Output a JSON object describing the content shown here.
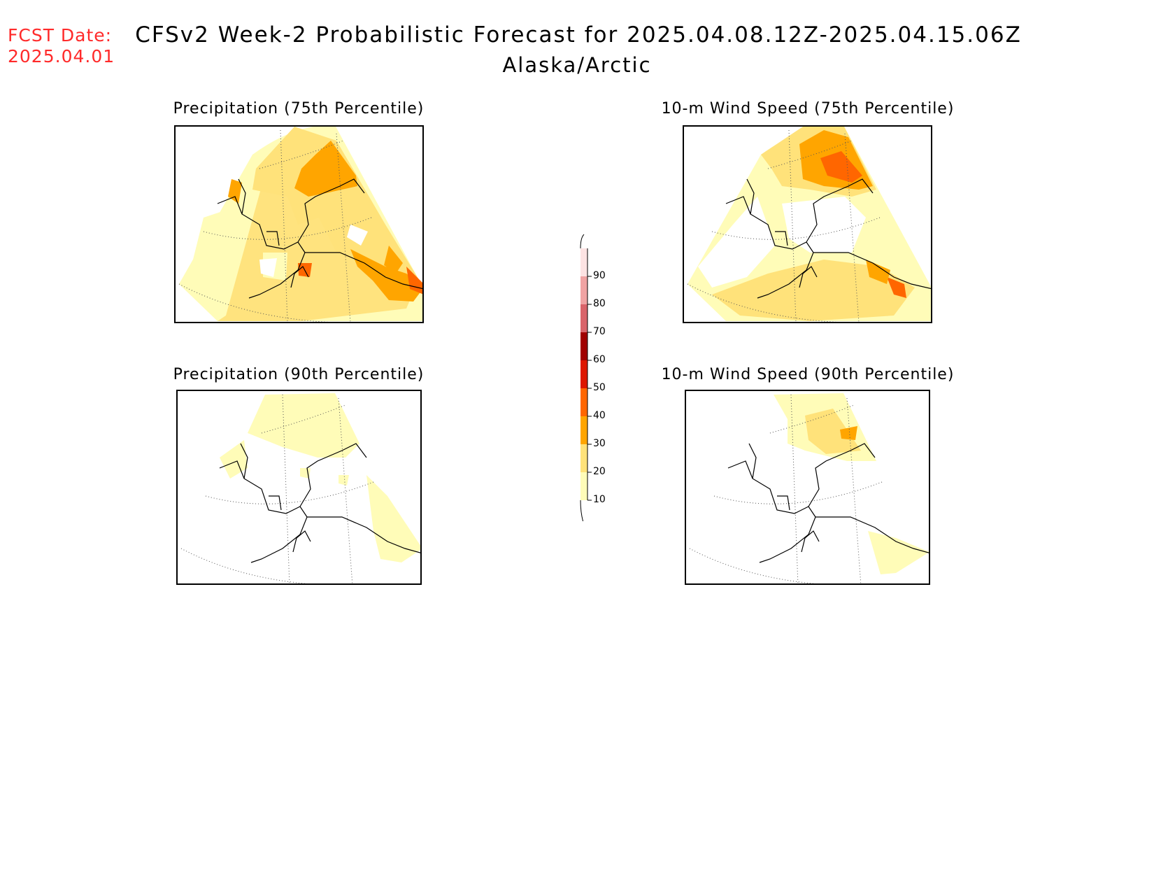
{
  "fcst": {
    "label": "FCST Date:",
    "date": "2025.04.01"
  },
  "title": {
    "main": "CFSv2 Week-2 Probabilistic Forecast for 2025.04.08.12Z-2025.04.15.06Z",
    "region": "Alaska/Arctic"
  },
  "panels": [
    {
      "title": "Precipitation (75th Percentile)",
      "level": "high-precip"
    },
    {
      "title": "10-m Wind Speed (75th Percentile)",
      "level": "high-wind"
    },
    {
      "title": "Precipitation (90th Percentile)",
      "level": "low-precip"
    },
    {
      "title": "10-m Wind Speed (90th Percentile)",
      "level": "low-wind"
    }
  ],
  "legend": {
    "labels": [
      "90",
      "80",
      "70",
      "60",
      "50",
      "40",
      "30",
      "20",
      "10"
    ],
    "colors": [
      "#fde3e3",
      "#f0a3a3",
      "#d9646a",
      "#a00000",
      "#dd1700",
      "#ff6600",
      "#ffa500",
      "#ffe27a",
      "#fffcb8"
    ]
  }
}
